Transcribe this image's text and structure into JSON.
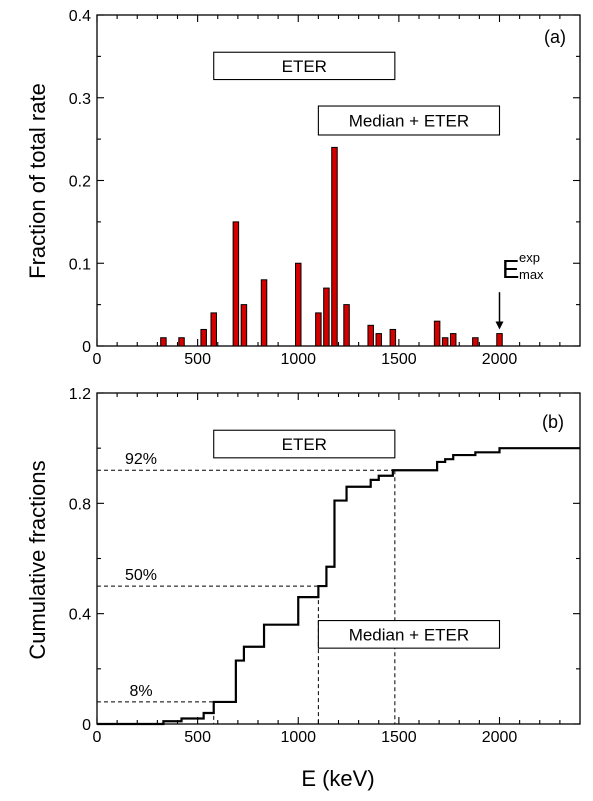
{
  "chart_data": [
    {
      "panel": "(a)",
      "type": "bar",
      "xlabel": "",
      "ylabel": "Fraction of total rate",
      "xlim": [
        0,
        2400
      ],
      "ylim": [
        0,
        0.4
      ],
      "xticks": [
        0,
        500,
        1000,
        1500,
        2000
      ],
      "yticks": [
        0,
        0.1,
        0.2,
        0.3,
        0.4
      ],
      "xtick_labels": [
        "0",
        "500",
        "1000",
        "1500",
        "2000"
      ],
      "ytick_labels": [
        "0",
        "0.1",
        "0.2",
        "0.3",
        "0.4"
      ],
      "bar_color": "#d40000",
      "x": [
        330,
        420,
        530,
        580,
        690,
        730,
        830,
        1000,
        1100,
        1140,
        1180,
        1240,
        1360,
        1400,
        1470,
        1690,
        1730,
        1770,
        1880,
        2000
      ],
      "values": [
        0.01,
        0.01,
        0.02,
        0.04,
        0.15,
        0.05,
        0.08,
        0.1,
        0.04,
        0.07,
        0.24,
        0.05,
        0.025,
        0.015,
        0.02,
        0.03,
        0.01,
        0.015,
        0.01,
        0.015
      ],
      "boxes": [
        {
          "label": "ETER",
          "x_range": [
            580,
            1480
          ],
          "y_range": [
            0.322,
            0.355
          ]
        },
        {
          "label": "Median + ETER",
          "x_range": [
            1100,
            2000
          ],
          "y_range": [
            0.255,
            0.29
          ]
        }
      ],
      "arrow_annotation": {
        "main": "E",
        "sup": "exp",
        "sub": "max",
        "x": 2000,
        "y_from": 0.065,
        "y_to": 0.02
      }
    },
    {
      "panel": "(b)",
      "type": "line",
      "xlabel": "E (keV)",
      "ylabel": "Cumulative fractions",
      "xlim": [
        0,
        2400
      ],
      "ylim": [
        0,
        1.2
      ],
      "xticks": [
        0,
        500,
        1000,
        1500,
        2000
      ],
      "yticks": [
        0,
        0.4,
        0.8,
        1.2
      ],
      "xtick_labels": [
        "0",
        "500",
        "1000",
        "1500",
        "2000"
      ],
      "ytick_labels": [
        "0",
        "0.4",
        "0.8",
        "1.2"
      ],
      "step_x": [
        330,
        420,
        530,
        580,
        690,
        730,
        830,
        1000,
        1100,
        1140,
        1180,
        1240,
        1360,
        1400,
        1470,
        1690,
        1730,
        1770,
        1880,
        2000
      ],
      "step_y": [
        0.01,
        0.02,
        0.04,
        0.08,
        0.23,
        0.28,
        0.36,
        0.46,
        0.5,
        0.57,
        0.81,
        0.86,
        0.885,
        0.9,
        0.92,
        0.95,
        0.96,
        0.975,
        0.985,
        1.0
      ],
      "step_x_end": 2400,
      "reference_lines": [
        {
          "label": "92%",
          "y": 0.92,
          "x": 1480
        },
        {
          "label": "50%",
          "y": 0.5,
          "x": 1100
        },
        {
          "label": "8%",
          "y": 0.08,
          "x": 580
        }
      ],
      "boxes": [
        {
          "label": "ETER",
          "x_range": [
            580,
            1480
          ],
          "y_range": [
            0.965,
            1.065
          ]
        },
        {
          "label": "Median + ETER",
          "x_range": [
            1100,
            2000
          ],
          "y_range": [
            0.275,
            0.375
          ]
        }
      ]
    }
  ]
}
